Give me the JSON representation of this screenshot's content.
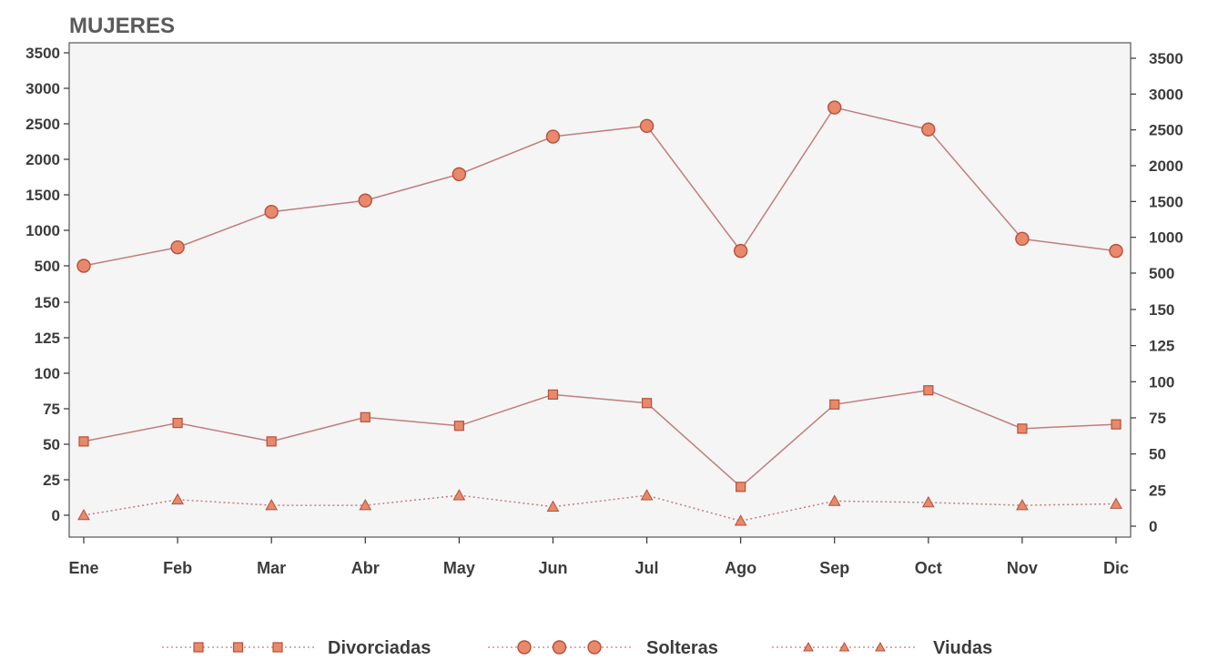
{
  "chart_data": {
    "type": "line",
    "title": "MUJERES",
    "categories": [
      "Ene",
      "Feb",
      "Mar",
      "Abr",
      "May",
      "Jun",
      "Jul",
      "Ago",
      "Sep",
      "Oct",
      "Nov",
      "Dic"
    ],
    "y_ticks": [
      "0",
      "25",
      "50",
      "75",
      "100",
      "125",
      "150",
      "500",
      "1000",
      "1500",
      "2000",
      "2500",
      "3000",
      "3500"
    ],
    "y_axis_note": "broken scale: 0-150 in steps of 25, then 500-3500 in steps of 500; ticks repeated on left and right",
    "grid": false,
    "legend_position": "bottom",
    "series": [
      {
        "name": "Divorciadas",
        "marker": "square",
        "line": "solid",
        "values": [
          52,
          65,
          52,
          69,
          63,
          85,
          79,
          20,
          78,
          88,
          61,
          64
        ]
      },
      {
        "name": "Solteras",
        "marker": "circle",
        "line": "solid",
        "values": [
          500,
          760,
          1260,
          1420,
          1790,
          2320,
          2470,
          710,
          2730,
          2420,
          880,
          710
        ]
      },
      {
        "name": "Viudas",
        "marker": "triangle",
        "line": "dotted",
        "values": [
          0,
          11,
          7,
          7,
          14,
          6,
          14,
          -4,
          10,
          9,
          7,
          8
        ]
      }
    ],
    "colors": {
      "marker_fill": "#e8896b",
      "marker_stroke": "#b5503a",
      "line": "#c07d7d",
      "plot_bg": "#f5f5f5",
      "axis": "#333333"
    }
  }
}
